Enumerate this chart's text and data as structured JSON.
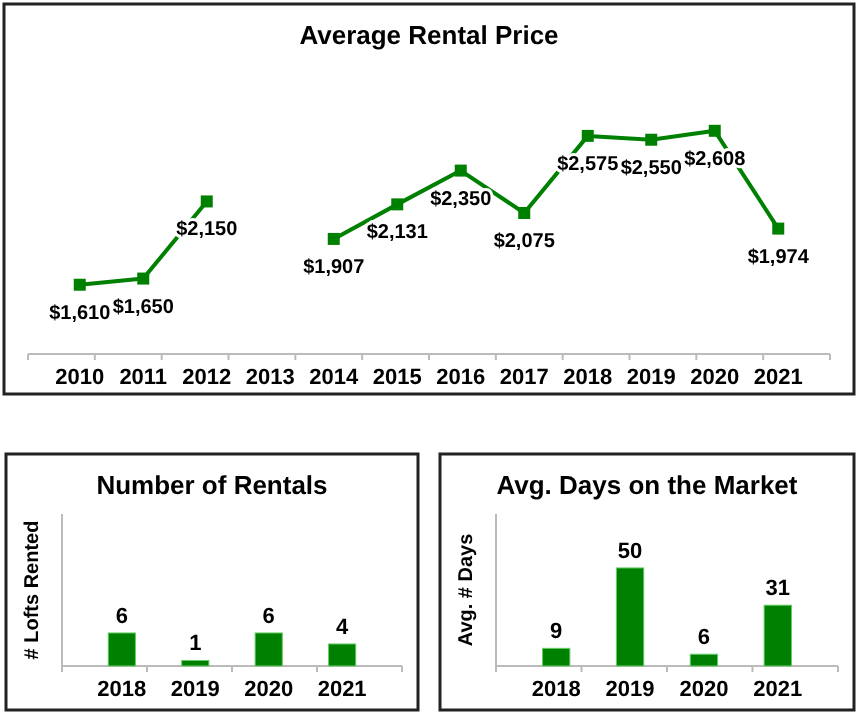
{
  "chart_data": [
    {
      "type": "line",
      "title": "Average Rental Price",
      "categories": [
        "2010",
        "2011",
        "2012",
        "2013",
        "2014",
        "2015",
        "2016",
        "2017",
        "2018",
        "2019",
        "2020",
        "2021"
      ],
      "series": [
        {
          "color": "#008000",
          "values": [
            1610,
            1650,
            2150,
            null,
            1907,
            2131,
            2350,
            2075,
            2575,
            2550,
            2608,
            1974
          ],
          "value_labels": [
            "$1,610",
            "$1,650",
            "$2,150",
            null,
            "$1,907",
            "$2,131",
            "$2,350",
            "$2,075",
            "$2,575",
            "$2,550",
            "$2,608",
            "$1,974"
          ]
        }
      ],
      "tick_labels": "x",
      "marker": "square"
    },
    {
      "type": "bar",
      "title": "Number of Rentals",
      "ylabel": "# Lofts Rented",
      "categories": [
        "2018",
        "2019",
        "2020",
        "2021"
      ],
      "values": [
        6,
        1,
        6,
        4
      ],
      "color": "#008000",
      "tick_labels": "x",
      "data_labels": true
    },
    {
      "type": "bar",
      "title": "Avg. Days on the Market",
      "ylabel": "Avg. # Days",
      "categories": [
        "2018",
        "2019",
        "2020",
        "2021"
      ],
      "values": [
        9,
        50,
        6,
        31
      ],
      "color": "#008000",
      "tick_labels": "x",
      "data_labels": true
    }
  ]
}
